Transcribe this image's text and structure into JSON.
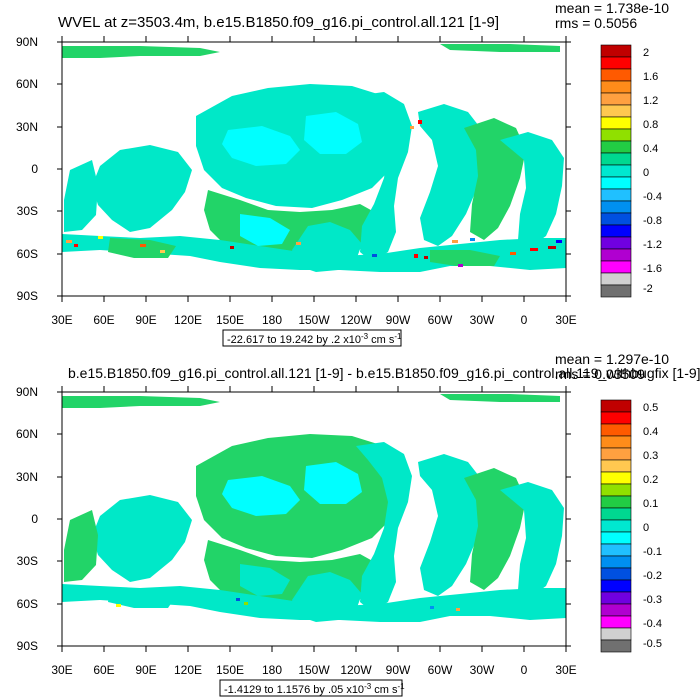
{
  "panels": [
    {
      "title": "WVEL at z=3503.4m, b.e15.B1850.f09_g16.pi_control.all.121 [1-9]",
      "mean": "mean = 1.738e-10",
      "rms": "rms = 0.5056",
      "range_text": "-22.617 to 19.242 by .2 x10",
      "range_exp": "-3",
      "range_units": " cm s",
      "range_units_exp": "-1",
      "colorbar_labels": [
        "2",
        "1.6",
        "1.2",
        "0.8",
        "0.4",
        "0",
        "-0.4",
        "-0.8",
        "-1.2",
        "-1.6",
        "-2"
      ]
    },
    {
      "title": "b.e15.B1850.f09_g16.pi_control.all.121 [1-9] - b.e15.B1850.f09_g16.pi_control.all.119_withbugfix [1-9]",
      "mean": "mean = 1.297e-10",
      "rms": "rms = 0.03509",
      "range_text": "-1.4129 to 1.1576 by .05 x10",
      "range_exp": "-3",
      "range_units": " cm s",
      "range_units_exp": "-1",
      "colorbar_labels": [
        "0.5",
        "0.4",
        "0.3",
        "0.2",
        "0.1",
        "0",
        "-0.1",
        "-0.2",
        "-0.3",
        "-0.4",
        "-0.5"
      ]
    }
  ],
  "axes": {
    "lat_labels": [
      "90N",
      "60N",
      "30N",
      "0",
      "30S",
      "60S",
      "90S"
    ],
    "lon_labels": [
      "30E",
      "60E",
      "90E",
      "120E",
      "150E",
      "180",
      "150W",
      "120W",
      "90W",
      "60W",
      "30W",
      "0",
      "30E"
    ]
  },
  "colors": {
    "colorbar": [
      "#C00000",
      "#FF0000",
      "#FF5A00",
      "#FF8C1A",
      "#FFA040",
      "#FFC850",
      "#FFFF00",
      "#90E000",
      "#22CC44",
      "#00D890",
      "#00E8D0",
      "#00FFFF",
      "#20C0FF",
      "#0090F0",
      "#0050E0",
      "#0000FF",
      "#7000E0",
      "#B000D0",
      "#FF00FF",
      "#D0D0D0",
      "#707070"
    ],
    "ocean_main": "#00E8C8",
    "ocean_alt": "#22D468",
    "ocean_cyan": "#00FFFF"
  }
}
